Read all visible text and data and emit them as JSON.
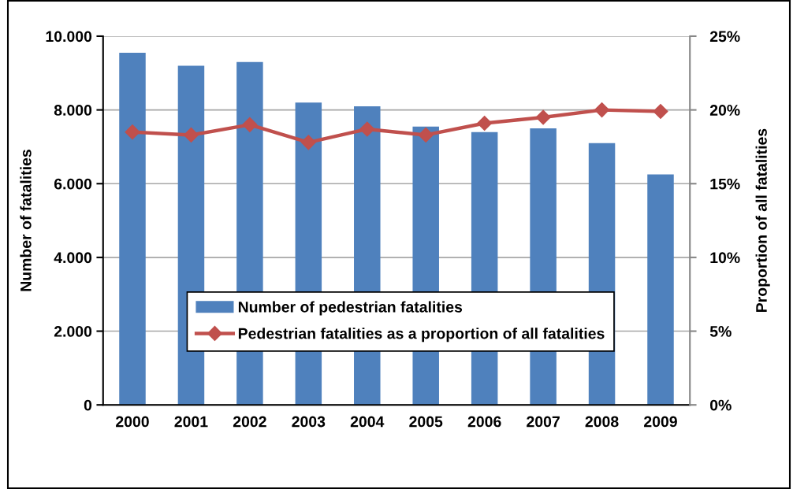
{
  "chart_data": {
    "type": "bar",
    "ylabel": "Number of fatalities",
    "y2label": "Proportion of all fatalities",
    "categories": [
      "2000",
      "2001",
      "2002",
      "2003",
      "2004",
      "2005",
      "2006",
      "2007",
      "2008",
      "2009"
    ],
    "series": [
      {
        "name": "Number of pedestrian fatalities",
        "color": "#4f81bd",
        "values": [
          9550,
          9200,
          9300,
          8200,
          8100,
          7550,
          7400,
          7500,
          7100,
          6250
        ]
      },
      {
        "name": "Pedestrian fatalities as a proportion of all fatalities",
        "type": "line",
        "axis": "y2",
        "color": "#c0504d",
        "values": [
          18.5,
          18.3,
          19.0,
          17.8,
          18.7,
          18.3,
          19.1,
          19.5,
          20.0,
          19.9
        ]
      }
    ],
    "ylim": [
      0,
      10000
    ],
    "yticks": [
      0,
      {
        "value": 2000,
        "label": "2.000"
      },
      {
        "value": 4000,
        "label": "4.000"
      },
      {
        "value": 6000,
        "label": "6.000"
      },
      {
        "value": 8000,
        "label": "8.000"
      },
      {
        "value": 10000,
        "label": "10.000"
      }
    ],
    "y2lim": [
      0,
      25
    ],
    "y2ticks": [
      {
        "value": 0,
        "label": "0%"
      },
      {
        "value": 5,
        "label": "5%"
      },
      {
        "value": 10,
        "label": "10%"
      },
      {
        "value": 15,
        "label": "15%"
      },
      {
        "value": 20,
        "label": "20%"
      },
      {
        "value": 25,
        "label": "25%"
      }
    ],
    "grid": "y",
    "legend": "bottom",
    "marker": "diamond",
    "line_style": "solid"
  }
}
